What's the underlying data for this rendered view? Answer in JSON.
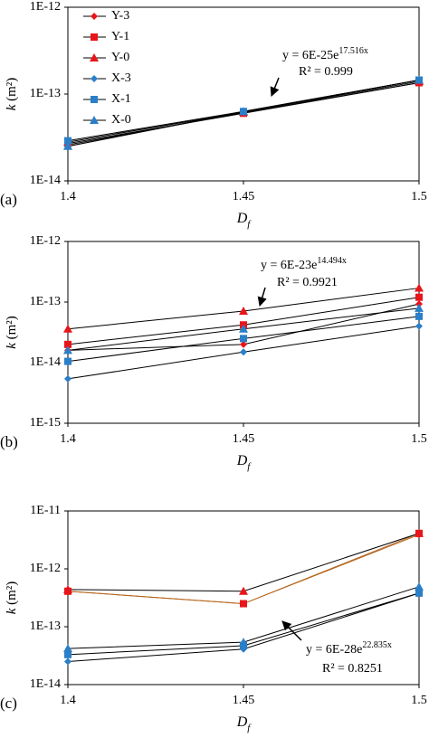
{
  "chart_data": [
    {
      "type": "line",
      "panel_label": "(a)",
      "x_label": "D",
      "x_label_sub": "f",
      "y_label": "k",
      "y_label_unit": "(m²)",
      "x": [
        1.4,
        1.45,
        1.5
      ],
      "xlim": [
        1.4,
        1.5
      ],
      "xticks": [
        1.4,
        1.45,
        1.5
      ],
      "ylim": [
        1e-14,
        1e-12
      ],
      "log_y": true,
      "yticks": [
        {
          "value": 1e-14,
          "label": "1E-14"
        },
        {
          "value": 1e-13,
          "label": "1E-13"
        },
        {
          "value": 1e-12,
          "label": "1E-12"
        }
      ],
      "legend": "upper-left",
      "series": [
        {
          "name": "Y-3",
          "color": "#e8151b",
          "marker": "diamond",
          "line_color": "#000000",
          "values": [
            2.6e-14,
            6.1e-14,
            1.35e-13
          ]
        },
        {
          "name": "Y-1",
          "color": "#e8151b",
          "marker": "square",
          "line_color": "#000000",
          "values": [
            2.7e-14,
            6e-14,
            1.35e-13
          ]
        },
        {
          "name": "Y-0",
          "color": "#e8151b",
          "marker": "triangle",
          "line_color": "#000000",
          "values": [
            2.8e-14,
            6.2e-14,
            1.4e-13
          ]
        },
        {
          "name": "X-3",
          "color": "#2a7fc8",
          "marker": "diamond",
          "line_color": "#000000",
          "values": [
            2.5e-14,
            6.2e-14,
            1.45e-13
          ]
        },
        {
          "name": "X-1",
          "color": "#2a7fc8",
          "marker": "square",
          "line_color": "#000000",
          "values": [
            2.9e-14,
            6.3e-14,
            1.45e-13
          ]
        },
        {
          "name": "X-0",
          "color": "#2a7fc8",
          "marker": "triangle",
          "line_color": "#000000",
          "values": [
            2.5e-14,
            6.3e-14,
            1.45e-13
          ]
        }
      ],
      "annotation": {
        "equation": "y = 6E-25e",
        "exponent": "17.516x",
        "r_squared": "R² = 0.999"
      }
    },
    {
      "type": "line",
      "panel_label": "(b)",
      "x_label": "D",
      "x_label_sub": "f",
      "y_label": "k",
      "y_label_unit": "(m²)",
      "x": [
        1.4,
        1.45,
        1.5
      ],
      "xlim": [
        1.4,
        1.5
      ],
      "xticks": [
        1.4,
        1.45,
        1.5
      ],
      "ylim": [
        1e-15,
        1e-12
      ],
      "log_y": true,
      "yticks": [
        {
          "value": 1e-15,
          "label": "1E-15"
        },
        {
          "value": 1e-14,
          "label": "1E-14"
        },
        {
          "value": 1e-13,
          "label": "1E-13"
        },
        {
          "value": 1e-12,
          "label": "1E-12"
        }
      ],
      "series": [
        {
          "color": "#e8151b",
          "marker": "diamond",
          "line_color": "#000000",
          "values": [
            1.6e-14,
            2e-14,
            9.3e-14
          ]
        },
        {
          "color": "#e8151b",
          "marker": "square",
          "line_color": "#000000",
          "values": [
            2e-14,
            4.2e-14,
            1.2e-13
          ]
        },
        {
          "color": "#e8151b",
          "marker": "triangle",
          "line_color": "#000000",
          "values": [
            3.6e-14,
            7.1e-14,
            1.7e-13
          ]
        },
        {
          "color": "#2a7fc8",
          "marker": "diamond",
          "line_color": "#000000",
          "values": [
            5.4e-15,
            1.5e-14,
            4e-14
          ]
        },
        {
          "color": "#2a7fc8",
          "marker": "square",
          "line_color": "#000000",
          "values": [
            1.05e-14,
            2.5e-14,
            5.8e-14
          ]
        },
        {
          "color": "#2a7fc8",
          "marker": "triangle",
          "line_color": "#000000",
          "values": [
            1.6e-14,
            3.6e-14,
            7.9e-14
          ]
        }
      ],
      "annotation": {
        "equation": "y = 6E-23e",
        "exponent": "14.494x",
        "r_squared": "R² = 0.9921"
      }
    },
    {
      "type": "line",
      "panel_label": "(c)",
      "x_label": "D",
      "x_label_sub": "f",
      "y_label": "k",
      "y_label_unit": "(m²)",
      "x": [
        1.4,
        1.45,
        1.5
      ],
      "xlim": [
        1.4,
        1.5
      ],
      "xticks": [
        1.4,
        1.45,
        1.5
      ],
      "ylim": [
        1e-14,
        1e-11
      ],
      "log_y": true,
      "yticks": [
        {
          "value": 1e-14,
          "label": "1E-14"
        },
        {
          "value": 1e-13,
          "label": "1E-13"
        },
        {
          "value": 1e-12,
          "label": "1E-12"
        },
        {
          "value": 1e-11,
          "label": "1E-11"
        }
      ],
      "series": [
        {
          "color": "#e8151b",
          "marker": "diamond",
          "line_color": "#b5651d",
          "values": [
            4.1e-13,
            2.5e-13,
            3.9e-12
          ]
        },
        {
          "color": "#e8151b",
          "marker": "square",
          "line_color": "#b5651d",
          "values": [
            4.1e-13,
            2.5e-13,
            4.1e-12
          ]
        },
        {
          "color": "#e8151b",
          "marker": "triangle",
          "line_color": "#000000",
          "values": [
            4.4e-13,
            4.1e-13,
            4.1e-12
          ]
        },
        {
          "color": "#2a7fc8",
          "marker": "diamond",
          "line_color": "#000000",
          "values": [
            2.5e-14,
            4.1e-14,
            3.8e-13
          ]
        },
        {
          "color": "#2a7fc8",
          "marker": "square",
          "line_color": "#000000",
          "values": [
            3.3e-14,
            4.7e-14,
            3.8e-13
          ]
        },
        {
          "color": "#2a7fc8",
          "marker": "triangle",
          "line_color": "#000000",
          "values": [
            4.2e-14,
            5.4e-14,
            4.9e-13
          ]
        }
      ],
      "annotation": {
        "equation": "y = 6E-28e",
        "exponent": "22.835x",
        "r_squared": "R² = 0.8251"
      }
    }
  ]
}
